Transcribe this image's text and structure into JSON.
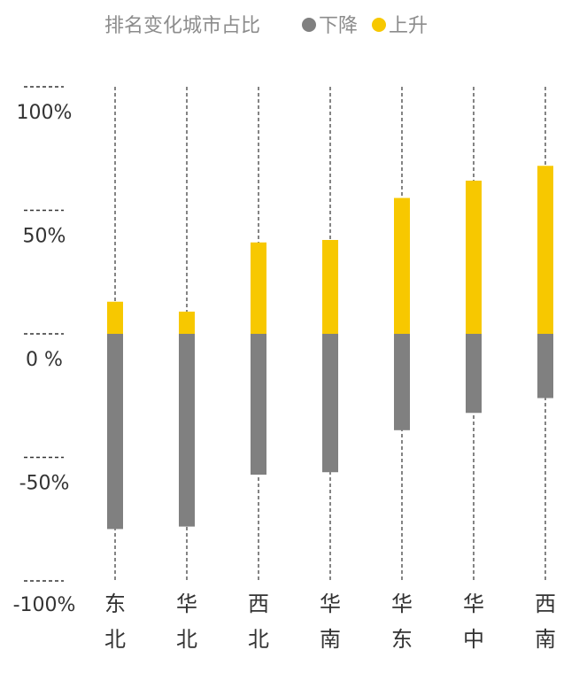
{
  "chart_data": {
    "type": "bar",
    "title": "排名变化城市占比",
    "legend": [
      {
        "label": "下降",
        "color": "#808080"
      },
      {
        "label": "上升",
        "color": "#F7C800"
      }
    ],
    "legend_placement": "top",
    "categories": [
      [
        "东",
        "北"
      ],
      [
        "华",
        "北"
      ],
      [
        "西",
        "北"
      ],
      [
        "华",
        "南"
      ],
      [
        "华",
        "东"
      ],
      [
        "华",
        "中"
      ],
      [
        "西",
        "南"
      ]
    ],
    "series": [
      {
        "name": "下降",
        "color": "#808080",
        "values": [
          -79,
          -78,
          -57,
          -56,
          -39,
          -32,
          -26
        ]
      },
      {
        "name": "上升",
        "color": "#F7C800",
        "values": [
          13,
          9,
          37,
          38,
          55,
          62,
          68
        ]
      }
    ],
    "y_ticks": [
      "100%",
      "50%",
      "0 %",
      "-50%",
      "-100%"
    ],
    "y_tick_values": [
      100,
      50,
      0,
      -50,
      -100
    ],
    "ylim": [
      -100,
      100
    ],
    "grid": "dashed vertical guides per category, short dashed marks at y ticks"
  }
}
